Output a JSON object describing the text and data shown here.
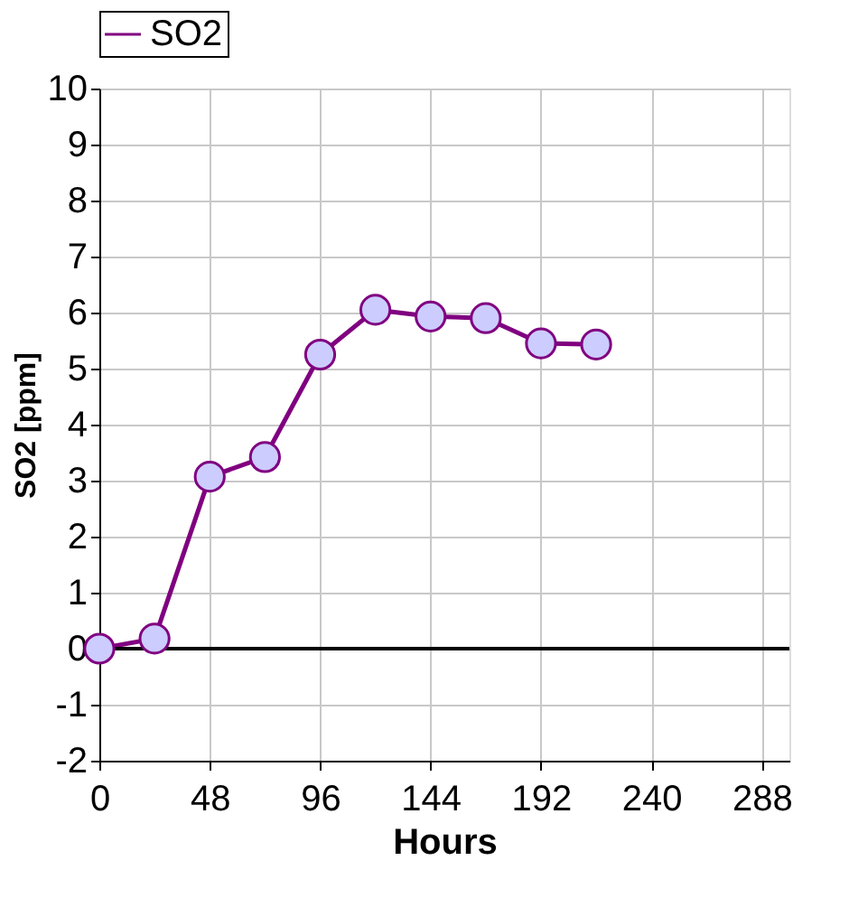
{
  "chart_data": {
    "type": "line",
    "xlabel": "Hours",
    "ylabel": "SO2 [ppm]",
    "x": [
      0,
      24,
      48,
      72,
      96,
      120,
      144,
      168,
      192,
      216
    ],
    "series": [
      {
        "name": "SO2",
        "color": "#800080",
        "values": [
          0.0,
          0.18,
          3.07,
          3.42,
          5.25,
          6.05,
          5.93,
          5.9,
          5.45,
          5.43
        ]
      }
    ],
    "xlim": [
      0,
      300
    ],
    "xticks": [
      0,
      48,
      96,
      144,
      192,
      240,
      288
    ],
    "ylim": [
      -2,
      10
    ],
    "yticks": [
      -2,
      -1,
      0,
      1,
      2,
      3,
      4,
      5,
      6,
      7,
      8,
      9,
      10
    ],
    "ref_lines": [
      {
        "axis": "y",
        "value": 0,
        "color": "#000000"
      }
    ],
    "grid": true,
    "legend": "top",
    "marker": "circle",
    "line_style": "solid"
  }
}
